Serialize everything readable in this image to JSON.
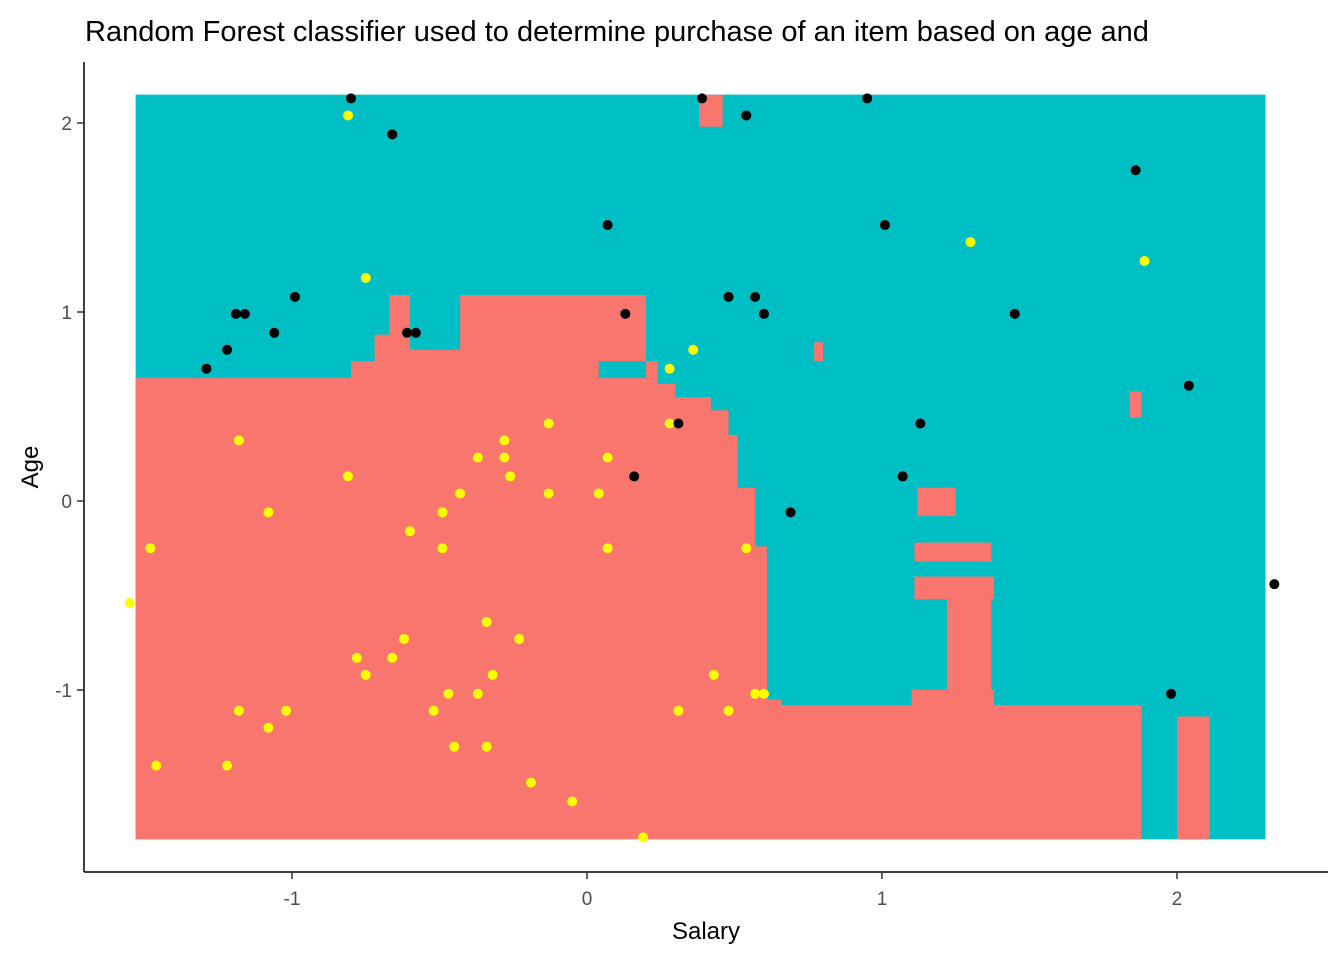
{
  "chart_data": {
    "type": "scatter",
    "title": "Random Forest classifier used to determine purchase of an item based on age and",
    "xlabel": "Salary",
    "ylabel": "Age",
    "xlim": [
      -1.65,
      2.45
    ],
    "ylim": [
      -1.98,
      2.33
    ],
    "x_ticks": [
      -1,
      0,
      1,
      2
    ],
    "y_ticks": [
      -1,
      0,
      1,
      2
    ],
    "x_tick_labels": [
      "-1",
      "0",
      "1",
      "2"
    ],
    "y_tick_labels": [
      "-1",
      "0",
      "1",
      "2"
    ],
    "grid": false,
    "legend": "none",
    "colors": {
      "region_class_0": "#F8766D",
      "region_class_1": "#00BFC4",
      "points_class_0": "#FFFF00",
      "points_class_1": "#000000"
    },
    "decision_regions": {
      "x_range": [
        -1.53,
        2.3
      ],
      "y_range": [
        -1.79,
        2.15
      ],
      "class_1_background": true,
      "class_0_polygon": [
        [
          -1.53,
          -1.79
        ],
        [
          -1.53,
          0.65
        ],
        [
          -0.8,
          0.65
        ],
        [
          -0.8,
          0.74
        ],
        [
          -0.72,
          0.74
        ],
        [
          -0.72,
          0.88
        ],
        [
          -0.67,
          0.88
        ],
        [
          -0.67,
          1.09
        ],
        [
          -0.6,
          1.09
        ],
        [
          -0.6,
          0.8
        ],
        [
          -0.43,
          0.8
        ],
        [
          -0.43,
          1.09
        ],
        [
          0.2,
          1.09
        ],
        [
          0.2,
          0.74
        ],
        [
          0.3,
          0.74
        ],
        [
          0.3,
          0.55
        ],
        [
          0.42,
          0.55
        ],
        [
          0.42,
          0.48
        ],
        [
          0.48,
          0.48
        ],
        [
          0.48,
          0.35
        ],
        [
          0.51,
          0.35
        ],
        [
          0.51,
          0.07
        ],
        [
          0.57,
          0.07
        ],
        [
          0.57,
          -0.24
        ],
        [
          0.61,
          -0.24
        ],
        [
          0.61,
          -1.05
        ],
        [
          0.66,
          -1.05
        ],
        [
          0.66,
          -1.08
        ],
        [
          1.1,
          -1.08
        ],
        [
          1.1,
          -1.0
        ],
        [
          1.38,
          -1.0
        ],
        [
          1.38,
          -1.08
        ],
        [
          1.88,
          -1.08
        ],
        [
          1.88,
          -1.79
        ]
      ],
      "class_0_patches": [
        [
          0.38,
          2.15,
          0.46,
          1.98
        ],
        [
          0.77,
          0.84,
          0.8,
          0.74
        ],
        [
          1.84,
          0.58,
          1.88,
          0.44
        ],
        [
          1.12,
          0.07,
          1.25,
          -0.08
        ],
        [
          1.11,
          -0.22,
          1.37,
          -0.32
        ],
        [
          1.11,
          -0.4,
          1.38,
          -0.52
        ],
        [
          1.22,
          -0.52,
          1.37,
          -1.0
        ],
        [
          2.0,
          -1.14,
          2.11,
          -1.79
        ]
      ],
      "class_1_patches": [
        [
          0.04,
          0.74,
          0.2,
          0.65
        ],
        [
          0.24,
          0.74,
          0.3,
          0.62
        ]
      ]
    },
    "series": [
      {
        "class": 0,
        "x": [
          -1.48,
          -1.55,
          -1.18,
          -1.08,
          -1.18,
          -1.02,
          -1.08,
          -1.22,
          -1.46,
          -0.81,
          -0.78,
          -0.75,
          -0.66,
          -0.6,
          -0.62,
          -0.52,
          -0.49,
          -0.49,
          -0.45,
          -0.43,
          -0.47,
          -0.37,
          -0.37,
          -0.34,
          -0.32,
          -0.34,
          -0.28,
          -0.28,
          -0.26,
          -0.23,
          -0.19,
          -0.13,
          -0.13,
          -0.05,
          0.04,
          0.07,
          0.07,
          0.19,
          0.28,
          0.28,
          0.31,
          0.36,
          0.43,
          0.48,
          0.54,
          0.57,
          0.6,
          1.3,
          1.89,
          -0.81,
          -0.75
        ],
        "y": [
          -0.25,
          -0.54,
          0.32,
          -0.06,
          -1.11,
          -1.11,
          -1.2,
          -1.4,
          -1.4,
          0.13,
          -0.83,
          -0.92,
          -0.83,
          -0.16,
          -0.73,
          -1.11,
          -0.06,
          -0.25,
          -1.3,
          0.04,
          -1.02,
          0.23,
          -1.02,
          -0.64,
          -0.92,
          -1.3,
          0.32,
          0.23,
          0.13,
          -0.73,
          -1.49,
          0.41,
          0.04,
          -1.59,
          0.04,
          0.23,
          -0.25,
          -1.78,
          0.41,
          0.7,
          -1.11,
          0.8,
          -0.92,
          -1.11,
          -0.25,
          -1.02,
          -1.02,
          1.37,
          1.27,
          2.04,
          1.18
        ]
      },
      {
        "class": 1,
        "x": [
          -1.29,
          -1.22,
          -1.19,
          -1.16,
          -1.06,
          -0.99,
          -0.8,
          -0.66,
          -0.61,
          -0.58,
          0.07,
          0.13,
          0.16,
          0.31,
          0.39,
          0.48,
          0.54,
          0.57,
          0.6,
          0.69,
          0.95,
          1.01,
          1.07,
          1.13,
          1.45,
          1.86,
          1.98,
          2.04,
          2.33
        ],
        "y": [
          0.7,
          0.8,
          0.99,
          0.99,
          0.89,
          1.08,
          2.13,
          1.94,
          0.89,
          0.89,
          1.46,
          0.99,
          0.13,
          0.41,
          2.13,
          1.08,
          2.04,
          1.08,
          0.99,
          -0.06,
          2.13,
          1.46,
          0.13,
          0.41,
          0.99,
          1.75,
          -1.02,
          0.61,
          -0.44
        ]
      }
    ]
  }
}
